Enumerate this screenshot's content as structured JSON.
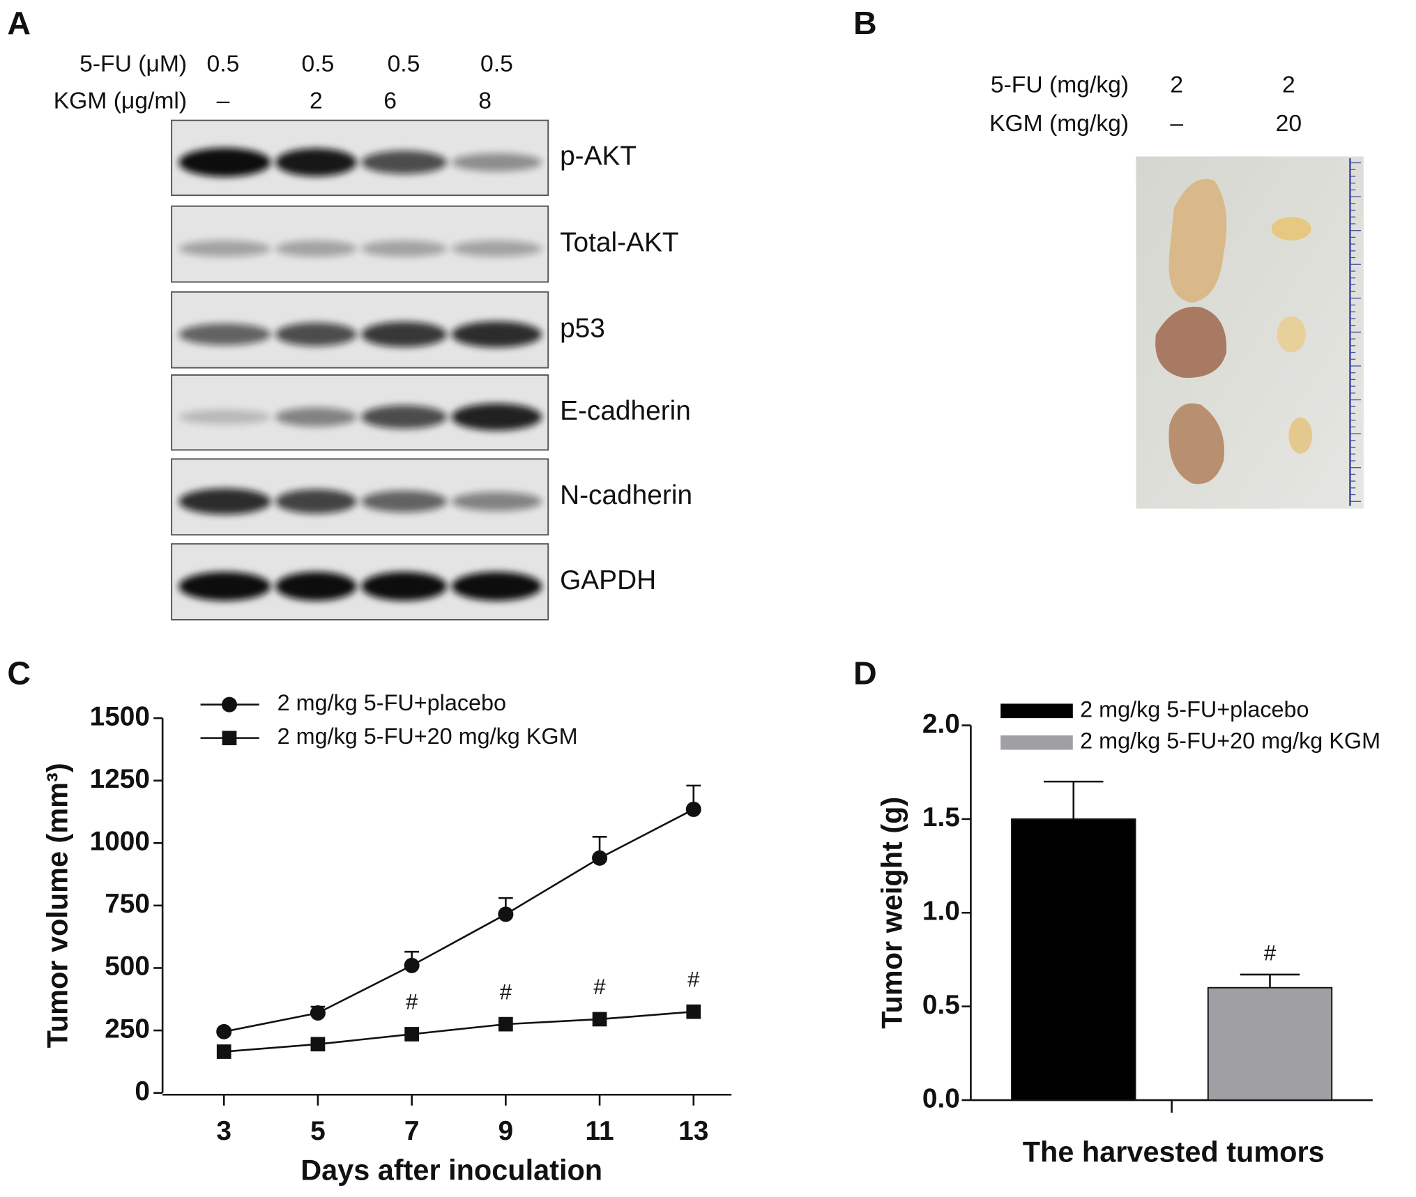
{
  "panel_labels": [
    "A",
    "B",
    "C",
    "D"
  ],
  "western_blot": {
    "treatments": [
      {
        "label": "5-FU (μM)",
        "values": [
          "0.5",
          "0.5",
          "0.5",
          "0.5"
        ]
      },
      {
        "label": "KGM (μg/ml)",
        "values": [
          "–",
          "2",
          "6",
          "8"
        ]
      }
    ],
    "proteins": [
      "p-AKT",
      "Total-AKT",
      "p53",
      "E-cadherin",
      "N-cadherin",
      "GAPDH"
    ]
  },
  "tumor_photo": {
    "treatments": [
      {
        "label": "5-FU (mg/kg)",
        "values": [
          "2",
          "2"
        ]
      },
      {
        "label": "KGM (mg/kg)",
        "values": [
          "–",
          "20"
        ]
      }
    ]
  },
  "chart_data": [
    {
      "type": "line",
      "x_label": "Days after inoculation",
      "y_label": "Tumor volume (mm³)",
      "x": [
        3,
        5,
        7,
        9,
        11,
        13
      ],
      "xlim": [
        2,
        14
      ],
      "xticks": [
        3,
        5,
        7,
        9,
        11,
        13
      ],
      "ylim": [
        0,
        1500
      ],
      "yticks": [
        0,
        250,
        500,
        750,
        1000,
        1250,
        1500
      ],
      "series": [
        {
          "name": "2 mg/kg 5-FU+placebo",
          "color": "#111111",
          "marker": "circle",
          "values": [
            245,
            320,
            510,
            715,
            940,
            1135
          ],
          "errors": [
            10,
            25,
            55,
            65,
            85,
            95
          ]
        },
        {
          "name": "2 mg/kg 5-FU+20 mg/kg KGM",
          "color": "#111111",
          "marker": "square",
          "values": [
            165,
            195,
            235,
            275,
            295,
            325
          ],
          "point_labels": [
            null,
            null,
            "#",
            "#",
            "#",
            "#"
          ]
        }
      ]
    },
    {
      "type": "bar",
      "x_label": "The harvested tumors",
      "y_label": "Tumor weight (g)",
      "ylim": [
        0,
        2
      ],
      "yticks": [
        {
          "value": 0,
          "label": "0.0"
        },
        {
          "value": 0.5,
          "label": "0.5"
        },
        {
          "value": 1,
          "label": "1.0"
        },
        {
          "value": 1.5,
          "label": "1.5"
        },
        {
          "value": 2,
          "label": "2.0"
        }
      ],
      "series": [
        {
          "name": "2 mg/kg 5-FU+placebo",
          "color": "#000000",
          "values": [
            1.5
          ],
          "errors": [
            0.2
          ]
        },
        {
          "name": "2 mg/kg 5-FU+20 mg/kg KGM",
          "color": "#a0a0a4",
          "values": [
            0.6
          ],
          "errors": [
            0.07
          ],
          "point_labels": [
            "#"
          ]
        }
      ]
    }
  ]
}
